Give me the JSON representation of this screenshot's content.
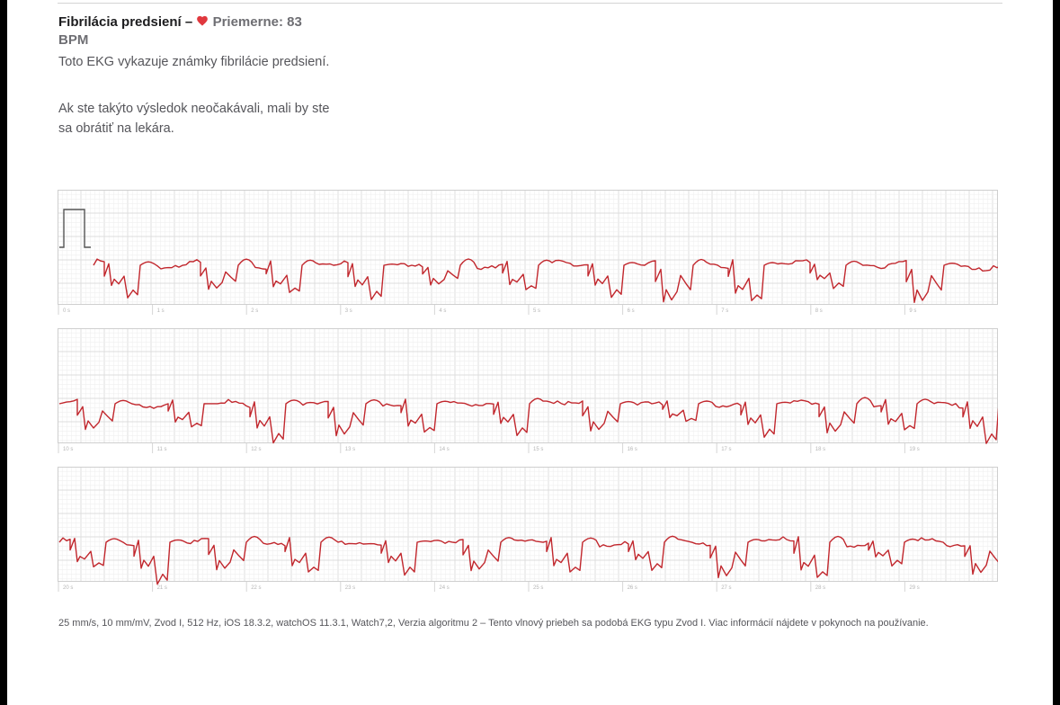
{
  "header": {
    "title": "Fibrilácia predsiení –",
    "heart_icon": "heart-icon",
    "average": "Priemerne: 83 BPM",
    "heart_color": "#e0383e"
  },
  "description": {
    "line1": "Toto EKG vykazuje známky fibrilácie predsiení.",
    "line2": "Ak ste takýto výsledok neočakávali, mali by ste sa obrátiť na lekára."
  },
  "strips": [
    {
      "ticks": [
        "0 s",
        "1 s",
        "2 s",
        "3 s",
        "4 s",
        "5 s",
        "6 s",
        "7 s",
        "8 s",
        "9 s"
      ]
    },
    {
      "ticks": [
        "10 s",
        "11 s",
        "12 s",
        "13 s",
        "14 s",
        "15 s",
        "16 s",
        "17 s",
        "18 s",
        "19 s"
      ]
    },
    {
      "ticks": [
        "20 s",
        "21 s",
        "22 s",
        "23 s",
        "24 s",
        "25 s",
        "26 s",
        "27 s",
        "28 s",
        "29 s"
      ]
    }
  ],
  "footer": "25 mm/s, 10 mm/mV, Zvod I, 512 Hz, iOS 18.3.2, watchOS 11.3.1, Watch7,2, Verzia algoritmu 2 – Tento vlnový priebeh sa podobá EKG typu Zvod I. Viac informácií nájdete v pokynoch na používanie.",
  "colors": {
    "trace": "#c1272d",
    "grid_minor": "#efefef",
    "grid_major": "#dcdcdc"
  }
}
